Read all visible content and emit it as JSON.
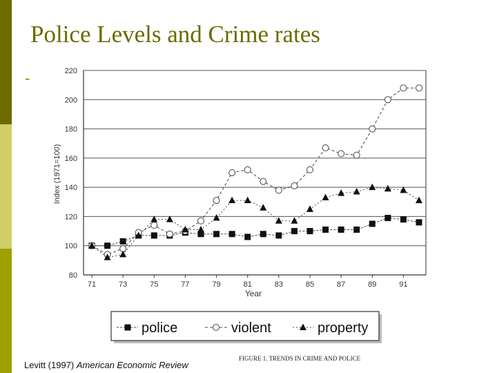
{
  "slide": {
    "title": "Police Levels and Crime rates",
    "bullet": "-",
    "citation_author": "Levitt (1997)",
    "citation_journal": "American Economic Review",
    "accent_colors": [
      "#6b6b00",
      "#cfcf66",
      "#9f9f00"
    ]
  },
  "chart_data": {
    "type": "line",
    "title": "",
    "caption": "FIGURE 1. TRENDS IN CRIME AND POLICE",
    "xlabel": "Year",
    "ylabel": "Index (1971=100)",
    "xlim": [
      71,
      92
    ],
    "ylim": [
      80,
      220
    ],
    "xticks": [
      "71",
      "73",
      "75",
      "77",
      "79",
      "81",
      "83",
      "85",
      "87",
      "89",
      "91"
    ],
    "yticks": [
      "80",
      "100",
      "120",
      "140",
      "160",
      "180",
      "200",
      "220"
    ],
    "grid": true,
    "legend_position": "bottom",
    "x": [
      71,
      72,
      73,
      74,
      75,
      76,
      77,
      78,
      79,
      80,
      81,
      82,
      83,
      84,
      85,
      86,
      87,
      88,
      89,
      90,
      91,
      92
    ],
    "series": [
      {
        "name": "police",
        "marker": "square",
        "values": [
          100,
          100,
          103,
          107,
          107,
          107,
          109,
          108,
          108,
          108,
          106,
          108,
          107,
          110,
          110,
          111,
          111,
          111,
          115,
          119,
          118,
          116
        ]
      },
      {
        "name": "violent",
        "marker": "circle",
        "values": [
          100,
          94,
          98,
          109,
          114,
          108,
          110,
          117,
          131,
          150,
          152,
          144,
          138,
          141,
          152,
          167,
          163,
          162,
          180,
          200,
          208,
          208
        ]
      },
      {
        "name": "property",
        "marker": "triangle",
        "values": [
          100,
          92,
          94,
          107,
          118,
          118,
          111,
          111,
          119,
          131,
          131,
          126,
          117,
          117,
          125,
          133,
          136,
          137,
          140,
          139,
          138,
          131
        ]
      }
    ]
  }
}
